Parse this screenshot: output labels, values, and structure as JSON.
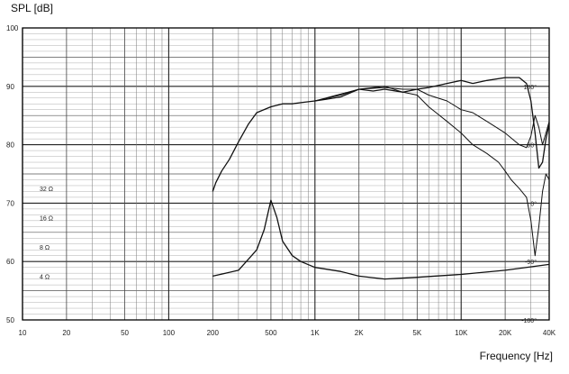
{
  "chart_data": {
    "type": "line",
    "title": "",
    "ylabel": "SPL  [dB]",
    "xlabel": "Frequency  [Hz]",
    "xscale": "log",
    "xlim": [
      10,
      40000
    ],
    "ylim": [
      50,
      100
    ],
    "grid": true,
    "legend": "none",
    "x_tick_labels": [
      {
        "value": 10,
        "label": "10"
      },
      {
        "value": 20,
        "label": "20"
      },
      {
        "value": 50,
        "label": "50"
      },
      {
        "value": 100,
        "label": "100"
      },
      {
        "value": 200,
        "label": "200"
      },
      {
        "value": 500,
        "label": "500"
      },
      {
        "value": 1000,
        "label": "1K"
      },
      {
        "value": 2000,
        "label": "2K"
      },
      {
        "value": 5000,
        "label": "5K"
      },
      {
        "value": 10000,
        "label": "10K"
      },
      {
        "value": 20000,
        "label": "20K"
      },
      {
        "value": 40000,
        "label": "40K"
      }
    ],
    "y_tick_labels": [
      {
        "value": 100,
        "label": "100"
      },
      {
        "value": 90,
        "label": "90"
      },
      {
        "value": 80,
        "label": "80"
      },
      {
        "value": 70,
        "label": "70"
      },
      {
        "value": 60,
        "label": "60"
      },
      {
        "value": 50,
        "label": "50"
      }
    ],
    "impedance_labels": [
      {
        "y": 72.5,
        "label": "32 Ω"
      },
      {
        "y": 67.5,
        "label": "16 Ω"
      },
      {
        "y": 62.5,
        "label": "8 Ω"
      },
      {
        "y": 57.5,
        "label": "4 Ω"
      }
    ],
    "phase_labels": [
      {
        "y": 90,
        "label": "180°"
      },
      {
        "y": 80,
        "label": "90°"
      },
      {
        "y": 70,
        "label": "0°"
      },
      {
        "y": 60,
        "label": "-90°"
      },
      {
        "y": 50,
        "label": "-180°"
      }
    ],
    "series": [
      {
        "values": [
          [
            200,
            72
          ],
          [
            210,
            73.5
          ],
          [
            230,
            75.5
          ],
          [
            260,
            77.5
          ],
          [
            300,
            80.5
          ],
          [
            350,
            83.5
          ],
          [
            400,
            85.5
          ],
          [
            500,
            86.5
          ],
          [
            600,
            87
          ],
          [
            700,
            87
          ],
          [
            800,
            87.2
          ],
          [
            1000,
            87.5
          ],
          [
            1200,
            87.8
          ],
          [
            1500,
            88.2
          ],
          [
            2000,
            89.5
          ],
          [
            2500,
            89.2
          ],
          [
            3000,
            89.5
          ],
          [
            4000,
            89
          ],
          [
            5000,
            89.5
          ],
          [
            6000,
            89.8
          ],
          [
            8000,
            90.5
          ],
          [
            10000,
            91
          ],
          [
            12000,
            90.5
          ],
          [
            15000,
            91
          ],
          [
            20000,
            91.5
          ],
          [
            25000,
            91.5
          ],
          [
            28000,
            90.5
          ],
          [
            30000,
            87.5
          ],
          [
            32000,
            82
          ],
          [
            34000,
            76
          ],
          [
            36000,
            77
          ],
          [
            38000,
            81
          ],
          [
            40000,
            83.5
          ]
        ]
      },
      {
        "values": [
          [
            1000,
            87.5
          ],
          [
            1500,
            88.5
          ],
          [
            2000,
            89.5
          ],
          [
            3000,
            90
          ],
          [
            4000,
            89
          ],
          [
            5000,
            88.5
          ],
          [
            6000,
            86.5
          ],
          [
            8000,
            84
          ],
          [
            10000,
            82
          ],
          [
            12000,
            80
          ],
          [
            15000,
            78.5
          ],
          [
            18000,
            77
          ],
          [
            20000,
            75.5
          ],
          [
            22000,
            74
          ],
          [
            25000,
            72.5
          ],
          [
            28000,
            71
          ],
          [
            30000,
            67
          ],
          [
            32000,
            61
          ],
          [
            34000,
            66
          ],
          [
            36000,
            72
          ],
          [
            38000,
            75
          ],
          [
            40000,
            74
          ]
        ]
      },
      {
        "values": [
          [
            1000,
            87.5
          ],
          [
            2000,
            89.5
          ],
          [
            3000,
            89.8
          ],
          [
            4000,
            89.5
          ],
          [
            5000,
            89.5
          ],
          [
            6000,
            88.5
          ],
          [
            8000,
            87.5
          ],
          [
            10000,
            86
          ],
          [
            12000,
            85.5
          ],
          [
            15000,
            84
          ],
          [
            20000,
            82
          ],
          [
            25000,
            80
          ],
          [
            28000,
            79.5
          ],
          [
            30000,
            81.5
          ],
          [
            32000,
            85
          ],
          [
            34000,
            83
          ],
          [
            36000,
            80
          ],
          [
            38000,
            82
          ],
          [
            40000,
            84
          ]
        ]
      },
      {
        "values": [
          [
            200,
            57.5
          ],
          [
            300,
            58.5
          ],
          [
            400,
            62
          ],
          [
            450,
            65.5
          ],
          [
            500,
            70.5
          ],
          [
            550,
            67.5
          ],
          [
            600,
            63.5
          ],
          [
            700,
            61
          ],
          [
            800,
            60
          ],
          [
            1000,
            59
          ],
          [
            1500,
            58.3
          ],
          [
            2000,
            57.5
          ],
          [
            3000,
            57
          ],
          [
            5000,
            57.3
          ],
          [
            10000,
            57.8
          ],
          [
            20000,
            58.5
          ],
          [
            40000,
            59.5
          ]
        ]
      }
    ]
  }
}
